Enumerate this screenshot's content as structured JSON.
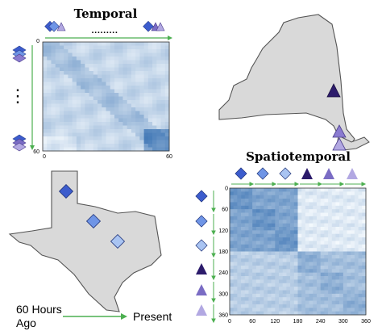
{
  "temporal": {
    "title": "Temporal",
    "ticks": {
      "origin": "0",
      "x_end": "60",
      "y_end": "60"
    },
    "ellipsis_h": "·········",
    "ellipsis_v": "⋮"
  },
  "spatiotemporal": {
    "title": "Spatiotemporal",
    "x_ticks": [
      "0",
      "60",
      "120",
      "180",
      "240",
      "300",
      "360"
    ],
    "y_ticks": [
      "0",
      "60",
      "120",
      "180",
      "240",
      "300",
      "360"
    ]
  },
  "timeline": {
    "start_label_line1": "60 Hours",
    "start_label_line2": "Ago",
    "end_label": "Present"
  },
  "colors": {
    "state_fill": "#d9d9d9",
    "state_stroke": "#555555",
    "arrow": "#4caf50",
    "heat_low": "#f4f9fd",
    "heat_high": "#1f5fa8",
    "diamond_dark": "#3c5ccd",
    "diamond_mid": "#6f95e6",
    "diamond_light": "#a9c4f2",
    "triangle_dark": "#2c1b6b",
    "triangle_mid": "#7a6cc4",
    "triangle_light": "#b2a8e2"
  },
  "icons": [
    "blue-diamond-icon",
    "purple-triangle-icon"
  ]
}
